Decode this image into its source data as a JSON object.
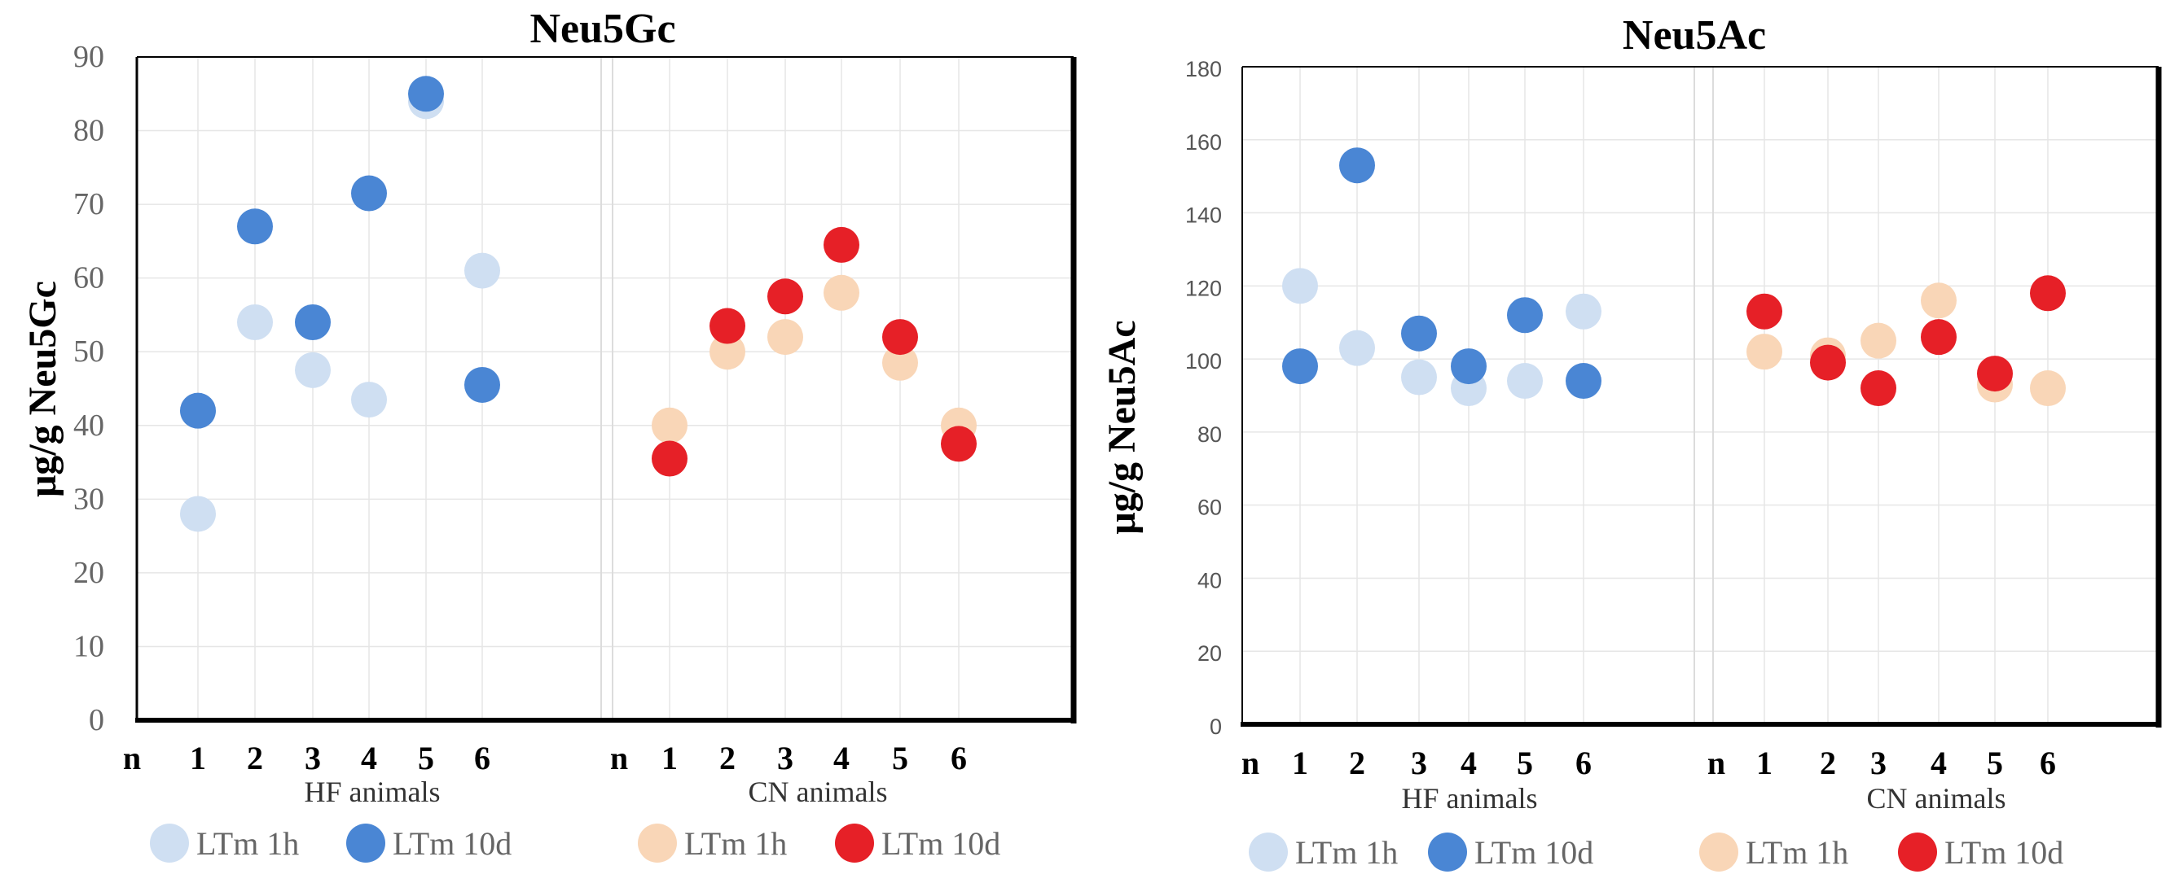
{
  "colors": {
    "hf_1h": "#cfdff2",
    "hf_10d": "#4a86d4",
    "cn_1h": "#f9d6b7",
    "cn_10d": "#e62027"
  },
  "chart_data": [
    {
      "type": "scatter",
      "title": "Neu5Gc",
      "ylabel": "μg/g  Neu5Gc",
      "ylim": [
        0,
        90
      ],
      "yticks": [
        "0",
        "10",
        "20",
        "30",
        "40",
        "50",
        "60",
        "70",
        "80",
        "90"
      ],
      "n_prefix": "n",
      "groups": [
        {
          "name": "HF animals",
          "categories": [
            "1",
            "2",
            "3",
            "4",
            "5",
            "6"
          ],
          "series": [
            {
              "name": "LTm 1h",
              "color_key": "hf_1h",
              "values": [
                28,
                54,
                47.5,
                43.5,
                84,
                61
              ]
            },
            {
              "name": "LTm 10d",
              "color_key": "hf_10d",
              "values": [
                42,
                67,
                54,
                71.5,
                85,
                45.5
              ]
            }
          ]
        },
        {
          "name": "CN animals",
          "categories": [
            "1",
            "2",
            "3",
            "4",
            "5",
            "6"
          ],
          "series": [
            {
              "name": "LTm 1h",
              "color_key": "cn_1h",
              "values": [
                40,
                50,
                52,
                58,
                48.5,
                40
              ]
            },
            {
              "name": "LTm 10d",
              "color_key": "cn_10d",
              "values": [
                35.5,
                53.5,
                57.5,
                64.5,
                52,
                37.5
              ]
            }
          ]
        }
      ]
    },
    {
      "type": "scatter",
      "title": "Neu5Ac",
      "ylabel": "μg/g  Neu5Ac",
      "ylim": [
        0,
        180
      ],
      "yticks": [
        "0",
        "20",
        "40",
        "60",
        "80",
        "100",
        "120",
        "140",
        "160",
        "180"
      ],
      "n_prefix": "n",
      "groups": [
        {
          "name": "HF animals",
          "categories": [
            "1",
            "2",
            "3",
            "4",
            "5",
            "6"
          ],
          "series": [
            {
              "name": "LTm 1h",
              "color_key": "hf_1h",
              "values": [
                120,
                103,
                95,
                92,
                94,
                113
              ]
            },
            {
              "name": "LTm 10d",
              "color_key": "hf_10d",
              "values": [
                98,
                153,
                107,
                98,
                112,
                94
              ]
            }
          ]
        },
        {
          "name": "CN animals",
          "categories": [
            "1",
            "2",
            "3",
            "4",
            "5",
            "6"
          ],
          "series": [
            {
              "name": "LTm 1h",
              "color_key": "cn_1h",
              "values": [
                102,
                101,
                105,
                116,
                93,
                92
              ]
            },
            {
              "name": "LTm 10d",
              "color_key": "cn_10d",
              "values": [
                113,
                99,
                92,
                106,
                96,
                118
              ]
            }
          ]
        }
      ]
    }
  ]
}
